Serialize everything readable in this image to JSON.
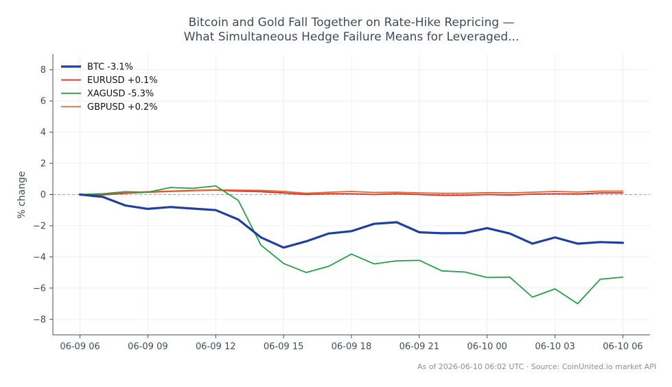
{
  "chart_data": {
    "type": "line",
    "title_lines": [
      "Bitcoin and Gold Fall Together on Rate-Hike Repricing —",
      "What Simultaneous Hedge Failure Means for Leveraged..."
    ],
    "ylabel": "% change",
    "ylim": [
      -9,
      9
    ],
    "yticks": [
      -8,
      -6,
      -4,
      -2,
      0,
      2,
      4,
      6,
      8
    ],
    "ytick_labels": [
      "−8",
      "−6",
      "−4",
      "−2",
      "0",
      "2",
      "4",
      "6",
      "8"
    ],
    "xlim": [
      -1.2,
      25.2
    ],
    "xticks": [
      0,
      3,
      6,
      9,
      12,
      15,
      18,
      21,
      24
    ],
    "xtick_labels": [
      "06-09 06",
      "06-09 09",
      "06-09 12",
      "06-09 15",
      "06-09 18",
      "06-09 21",
      "06-10 00",
      "06-10 03",
      "06-10 06"
    ],
    "x_unit": "hours from 06-09 06:00",
    "grid": true,
    "zero_line": true,
    "legend_position": "top-left",
    "x": [
      0,
      1,
      2,
      3,
      4,
      5,
      6,
      7,
      8,
      9,
      10,
      11,
      12,
      13,
      14,
      15,
      16,
      17,
      18,
      19,
      20,
      21,
      22,
      23,
      24
    ],
    "series": [
      {
        "name": "BTC -3.1%",
        "color": "#1f3fa0",
        "width": 3.2,
        "values": [
          0.0,
          -0.15,
          -0.7,
          -0.92,
          -0.8,
          -0.9,
          -1.0,
          -1.6,
          -2.75,
          -3.4,
          -3.0,
          -2.5,
          -2.35,
          -1.88,
          -1.78,
          -2.42,
          -2.48,
          -2.47,
          -2.15,
          -2.5,
          -3.15,
          -2.75,
          -3.15,
          -3.05,
          -3.1
        ]
      },
      {
        "name": "EURUSD +0.1%",
        "color": "#d62b2b",
        "width": 1.8,
        "values": [
          0.0,
          -0.02,
          0.08,
          0.15,
          0.2,
          0.25,
          0.28,
          0.22,
          0.18,
          0.1,
          0.0,
          0.05,
          0.05,
          0.0,
          0.05,
          0.0,
          -0.05,
          -0.05,
          0.0,
          -0.03,
          0.02,
          0.05,
          0.03,
          0.1,
          0.1
        ]
      },
      {
        "name": "XAGUSD -5.3%",
        "color": "#22a045",
        "width": 1.8,
        "values": [
          0.0,
          0.05,
          0.18,
          0.15,
          0.45,
          0.4,
          0.55,
          -0.38,
          -3.25,
          -4.42,
          -5.0,
          -4.6,
          -3.82,
          -4.45,
          -4.25,
          -4.22,
          -4.9,
          -4.97,
          -5.32,
          -5.3,
          -6.58,
          -6.05,
          -7.0,
          -5.43,
          -5.3
        ]
      },
      {
        "name": "GBPUSD +0.2%",
        "color": "#e8621f",
        "width": 1.8,
        "values": [
          0.0,
          0.05,
          0.12,
          0.18,
          0.22,
          0.27,
          0.3,
          0.28,
          0.27,
          0.2,
          0.08,
          0.15,
          0.2,
          0.13,
          0.15,
          0.1,
          0.08,
          0.08,
          0.12,
          0.1,
          0.15,
          0.2,
          0.16,
          0.22,
          0.22
        ]
      }
    ],
    "footer": "As of 2026-06-10 06:02 UTC · Source: CoinUnited.io market API"
  }
}
